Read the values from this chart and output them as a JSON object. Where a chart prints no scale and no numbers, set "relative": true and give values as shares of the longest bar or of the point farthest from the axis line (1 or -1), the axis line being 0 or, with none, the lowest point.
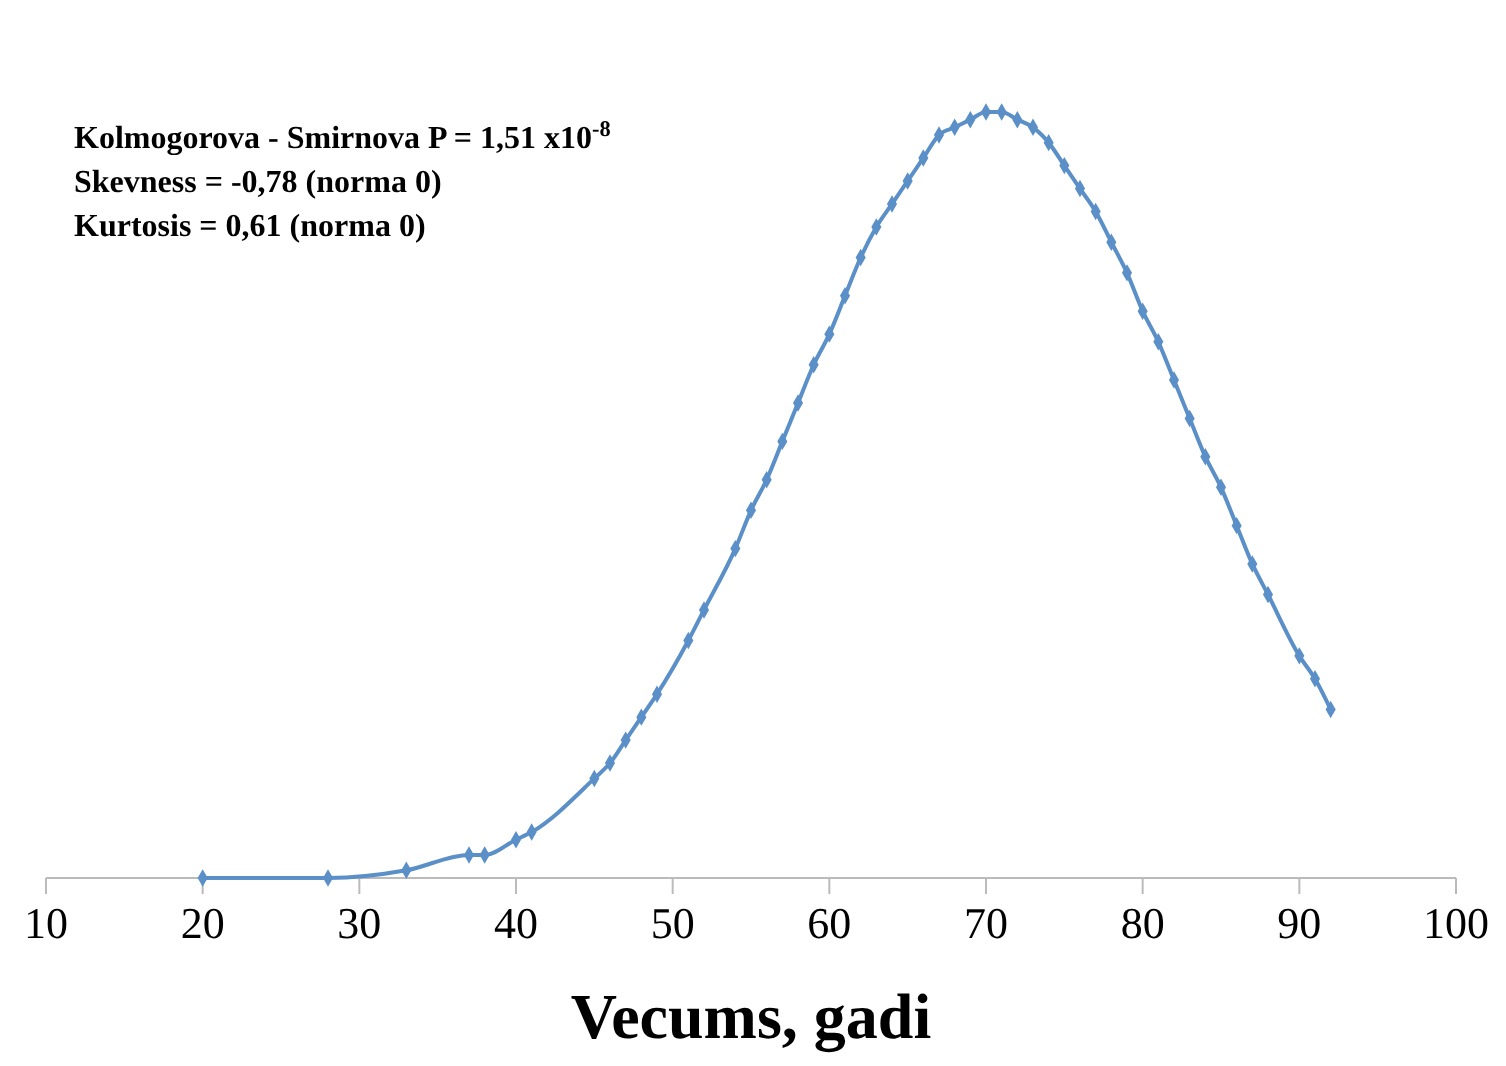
{
  "chart_data": {
    "type": "line",
    "relative": true,
    "xlabel": "Vecums, gadi",
    "xlim": [
      10,
      100
    ],
    "xticks": [
      10,
      20,
      30,
      40,
      50,
      60,
      70,
      80,
      90,
      100
    ],
    "marker": "diamond",
    "line_style": "solid",
    "annotations": [
      "Kolmogorova - Smirnova P = 1,51 x10$^{-8}$",
      "Skevness = -0,78 (norma 0)",
      "Kurtosis = 0,61 (norma 0)"
    ],
    "series": [
      {
        "color": "#5b8fc7",
        "x": [
          20,
          28,
          33,
          37,
          38,
          40,
          41,
          45,
          46,
          47,
          48,
          49,
          51,
          52,
          54,
          55,
          56,
          57,
          58,
          59,
          60,
          61,
          62,
          63,
          64,
          65,
          66,
          67,
          68,
          69,
          70,
          71,
          72,
          73,
          74,
          75,
          76,
          77,
          78,
          79,
          80,
          81,
          82,
          83,
          84,
          85,
          86,
          87,
          88,
          90,
          91,
          92
        ],
        "values": [
          0,
          0,
          0.01,
          0.03,
          0.03,
          0.05,
          0.06,
          0.13,
          0.15,
          0.18,
          0.21,
          0.24,
          0.31,
          0.35,
          0.43,
          0.48,
          0.52,
          0.57,
          0.62,
          0.67,
          0.71,
          0.76,
          0.81,
          0.85,
          0.88,
          0.91,
          0.94,
          0.97,
          0.98,
          0.99,
          1,
          1,
          0.99,
          0.98,
          0.96,
          0.93,
          0.9,
          0.87,
          0.83,
          0.79,
          0.74,
          0.7,
          0.65,
          0.6,
          0.55,
          0.51,
          0.46,
          0.41,
          0.37,
          0.29,
          0.26,
          0.22
        ]
      }
    ]
  }
}
